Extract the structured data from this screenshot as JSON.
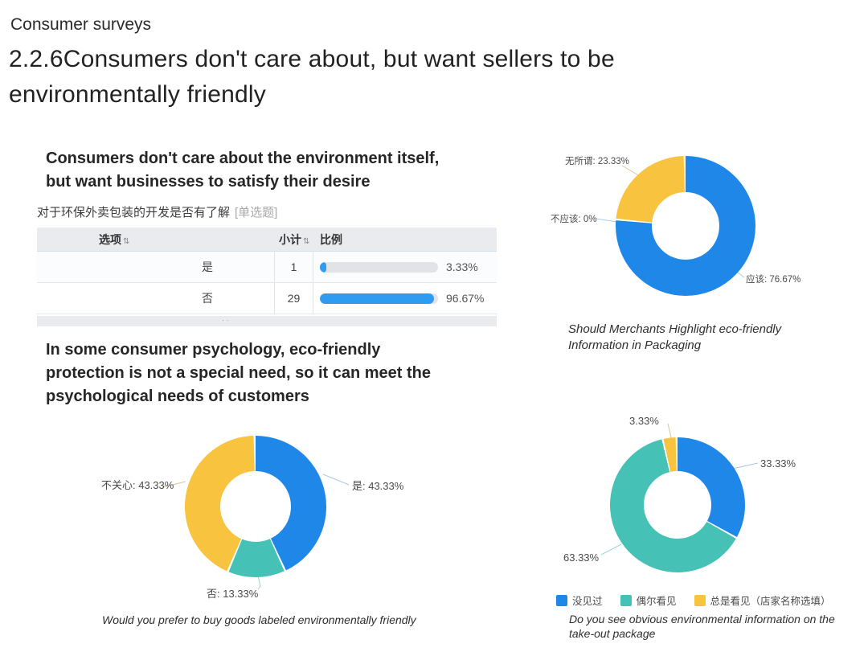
{
  "page": {
    "kicker": "Consumer surveys",
    "title": "2.2.6Consumers don't care about, but want sellers to be environmentally friendly"
  },
  "sections": {
    "heading1": "Consumers don't care about the environment itself, but want businesses to satisfy their desire",
    "heading2": "In some consumer psychology, eco-friendly protection is not a special need, so it can meet the psychological needs of customers"
  },
  "survey_table": {
    "question": "对于环保外卖包装的开发是否有了解",
    "question_type_tag": "[单选题]",
    "sort_icon": "⇅",
    "headers": [
      "选项",
      "小计",
      "比例"
    ],
    "rows": [
      {
        "option": "是",
        "count": "1",
        "percent": "3.33%",
        "bar_percent": 3.33
      },
      {
        "option": "否",
        "count": "29",
        "percent": "96.67%",
        "bar_percent": 96.67
      }
    ],
    "truncated_row_hint": "· ·"
  },
  "colors": {
    "blue": "#1f87e8",
    "teal": "#45c2b5",
    "yellow": "#f8c33e",
    "bar_blue": "#2f9cf1",
    "bar_track": "#e2e3e6"
  },
  "chart_data": [
    {
      "type": "pie",
      "variant": "donut",
      "caption": "Should Merchants Highlight eco-friendly Information in Packaging",
      "start_angle_deg": 0,
      "clockwise": true,
      "series": [
        {
          "name": "应该",
          "value": 76.67,
          "color": "#1f87e8",
          "label": "应该: 76.67%"
        },
        {
          "name": "不应该",
          "value": 0,
          "color": "#45c2b5",
          "label": "不应该: 0%"
        },
        {
          "name": "无所谓",
          "value": 23.33,
          "color": "#f8c33e",
          "label": "无所谓: 23.33%"
        }
      ]
    },
    {
      "type": "pie",
      "variant": "donut",
      "caption": "Would you prefer to buy goods labeled environmentally friendly",
      "start_angle_deg": 0,
      "clockwise": true,
      "series": [
        {
          "name": "是",
          "value": 43.33,
          "color": "#1f87e8",
          "label": "是: 43.33%"
        },
        {
          "name": "否",
          "value": 13.33,
          "color": "#45c2b5",
          "label": "否: 13.33%"
        },
        {
          "name": "不关心",
          "value": 43.33,
          "color": "#f8c33e",
          "label": "不关心: 43.33%"
        }
      ]
    },
    {
      "type": "pie",
      "variant": "donut",
      "caption": "Do you see obvious environmental information on the take-out package",
      "start_angle_deg": 0,
      "clockwise": true,
      "series": [
        {
          "name": "没见过",
          "value": 33.33,
          "color": "#1f87e8",
          "label": "33.33%"
        },
        {
          "name": "偶尔看见",
          "value": 63.33,
          "color": "#45c2b5",
          "label": "63.33%"
        },
        {
          "name": "总是看见（店家名称选填）",
          "value": 3.33,
          "color": "#f8c33e",
          "label": "3.33%"
        }
      ],
      "legend": [
        "没见过",
        "偶尔看见",
        "总是看见（店家名称选填）"
      ]
    }
  ]
}
